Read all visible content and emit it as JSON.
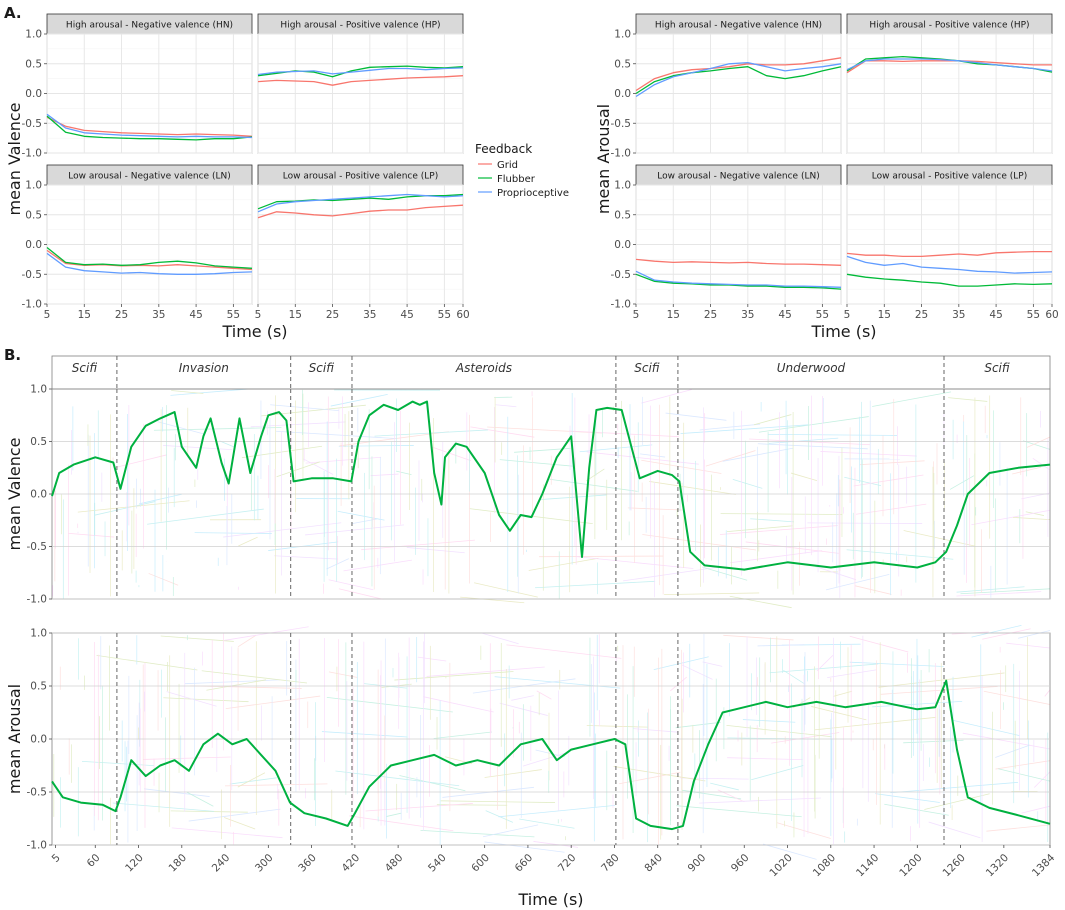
{
  "chart_data": [
    {
      "id": "A-valence",
      "type": "line",
      "panel_label": "A.",
      "ylabel": "mean Valence",
      "xlabel": "Time (s)",
      "xlim": [
        5,
        60
      ],
      "ylim": [
        -1,
        1
      ],
      "x_ticks": [
        5,
        15,
        25,
        35,
        45,
        55,
        60
      ],
      "y_ticks": [
        -1.0,
        -0.5,
        0.0,
        0.5,
        1.0
      ],
      "y_tick_labels": [
        "-1.0",
        "-0.5",
        "0.0",
        "0.5",
        "1.0"
      ],
      "x": [
        5,
        10,
        15,
        20,
        25,
        30,
        35,
        40,
        45,
        50,
        55,
        60
      ],
      "facets": [
        {
          "title": "High arousal - Negative valence (HN)",
          "series": [
            {
              "name": "Grid",
              "values": [
                -0.4,
                -0.55,
                -0.62,
                -0.64,
                -0.66,
                -0.67,
                -0.68,
                -0.69,
                -0.68,
                -0.69,
                -0.7,
                -0.72
              ]
            },
            {
              "name": "Flubber",
              "values": [
                -0.38,
                -0.65,
                -0.72,
                -0.74,
                -0.75,
                -0.76,
                -0.76,
                -0.77,
                -0.78,
                -0.76,
                -0.76,
                -0.73
              ]
            },
            {
              "name": "Proprioceptive",
              "values": [
                -0.35,
                -0.58,
                -0.66,
                -0.68,
                -0.7,
                -0.71,
                -0.72,
                -0.73,
                -0.72,
                -0.73,
                -0.73,
                -0.74
              ]
            }
          ]
        },
        {
          "title": "High arousal - Positive valence (HP)",
          "series": [
            {
              "name": "Grid",
              "values": [
                0.2,
                0.22,
                0.21,
                0.2,
                0.14,
                0.2,
                0.22,
                0.24,
                0.26,
                0.27,
                0.28,
                0.3
              ]
            },
            {
              "name": "Flubber",
              "values": [
                0.3,
                0.34,
                0.38,
                0.36,
                0.28,
                0.38,
                0.44,
                0.45,
                0.46,
                0.44,
                0.43,
                0.45
              ]
            },
            {
              "name": "Proprioceptive",
              "values": [
                0.32,
                0.36,
                0.37,
                0.38,
                0.33,
                0.36,
                0.39,
                0.42,
                0.42,
                0.4,
                0.42,
                0.43
              ]
            }
          ]
        },
        {
          "title": "Low arousal - Negative valence (LN)",
          "series": [
            {
              "name": "Grid",
              "values": [
                -0.1,
                -0.32,
                -0.35,
                -0.34,
                -0.36,
                -0.35,
                -0.36,
                -0.34,
                -0.36,
                -0.38,
                -0.4,
                -0.42
              ]
            },
            {
              "name": "Flubber",
              "values": [
                -0.05,
                -0.3,
                -0.34,
                -0.33,
                -0.35,
                -0.34,
                -0.3,
                -0.28,
                -0.31,
                -0.36,
                -0.38,
                -0.4
              ]
            },
            {
              "name": "Proprioceptive",
              "values": [
                -0.15,
                -0.38,
                -0.44,
                -0.46,
                -0.48,
                -0.47,
                -0.49,
                -0.5,
                -0.5,
                -0.49,
                -0.47,
                -0.46
              ]
            }
          ]
        },
        {
          "title": "Low arousal - Positive valence (LP)",
          "series": [
            {
              "name": "Grid",
              "values": [
                0.45,
                0.55,
                0.53,
                0.5,
                0.48,
                0.52,
                0.56,
                0.58,
                0.58,
                0.62,
                0.64,
                0.66
              ]
            },
            {
              "name": "Flubber",
              "values": [
                0.6,
                0.72,
                0.73,
                0.75,
                0.74,
                0.76,
                0.78,
                0.76,
                0.8,
                0.82,
                0.82,
                0.84
              ]
            },
            {
              "name": "Proprioceptive",
              "values": [
                0.55,
                0.68,
                0.72,
                0.74,
                0.76,
                0.78,
                0.8,
                0.82,
                0.84,
                0.82,
                0.8,
                0.82
              ]
            }
          ]
        }
      ]
    },
    {
      "id": "A-arousal",
      "type": "line",
      "ylabel": "mean Arousal",
      "xlabel": "Time (s)",
      "xlim": [
        5,
        60
      ],
      "ylim": [
        -1,
        1
      ],
      "x_ticks": [
        5,
        15,
        25,
        35,
        45,
        55,
        60
      ],
      "y_ticks": [
        -1.0,
        -0.5,
        0.0,
        0.5,
        1.0
      ],
      "y_tick_labels": [
        "-1.0",
        "-0.5",
        "0.0",
        "0.5",
        "1.0"
      ],
      "x": [
        5,
        10,
        15,
        20,
        25,
        30,
        35,
        40,
        45,
        50,
        55,
        60
      ],
      "facets": [
        {
          "title": "High arousal - Negative valence (HN)",
          "series": [
            {
              "name": "Grid",
              "values": [
                0.05,
                0.25,
                0.35,
                0.4,
                0.42,
                0.45,
                0.5,
                0.48,
                0.48,
                0.5,
                0.55,
                0.6
              ]
            },
            {
              "name": "Flubber",
              "values": [
                0.0,
                0.2,
                0.3,
                0.35,
                0.38,
                0.42,
                0.45,
                0.3,
                0.25,
                0.3,
                0.38,
                0.45
              ]
            },
            {
              "name": "Proprioceptive",
              "values": [
                -0.05,
                0.15,
                0.28,
                0.35,
                0.42,
                0.5,
                0.52,
                0.45,
                0.38,
                0.42,
                0.45,
                0.5
              ]
            }
          ]
        },
        {
          "title": "High arousal - Positive valence (HP)",
          "series": [
            {
              "name": "Grid",
              "values": [
                0.35,
                0.55,
                0.55,
                0.54,
                0.55,
                0.55,
                0.55,
                0.54,
                0.52,
                0.5,
                0.48,
                0.48
              ]
            },
            {
              "name": "Flubber",
              "values": [
                0.38,
                0.58,
                0.6,
                0.62,
                0.6,
                0.58,
                0.55,
                0.5,
                0.48,
                0.45,
                0.42,
                0.36
              ]
            },
            {
              "name": "Proprioceptive",
              "values": [
                0.4,
                0.55,
                0.58,
                0.58,
                0.58,
                0.57,
                0.55,
                0.52,
                0.48,
                0.45,
                0.42,
                0.38
              ]
            }
          ]
        },
        {
          "title": "Low arousal - Negative valence (LN)",
          "series": [
            {
              "name": "Grid",
              "values": [
                -0.25,
                -0.28,
                -0.3,
                -0.29,
                -0.3,
                -0.31,
                -0.3,
                -0.32,
                -0.33,
                -0.33,
                -0.34,
                -0.35
              ]
            },
            {
              "name": "Flubber",
              "values": [
                -0.5,
                -0.62,
                -0.65,
                -0.66,
                -0.68,
                -0.68,
                -0.7,
                -0.7,
                -0.72,
                -0.72,
                -0.73,
                -0.75
              ]
            },
            {
              "name": "Proprioceptive",
              "values": [
                -0.45,
                -0.6,
                -0.63,
                -0.65,
                -0.66,
                -0.67,
                -0.68,
                -0.68,
                -0.7,
                -0.7,
                -0.71,
                -0.72
              ]
            }
          ]
        },
        {
          "title": "Low arousal - Positive valence (LP)",
          "series": [
            {
              "name": "Grid",
              "values": [
                -0.15,
                -0.18,
                -0.18,
                -0.2,
                -0.2,
                -0.18,
                -0.16,
                -0.18,
                -0.14,
                -0.13,
                -0.12,
                -0.12
              ]
            },
            {
              "name": "Flubber",
              "values": [
                -0.5,
                -0.55,
                -0.58,
                -0.6,
                -0.63,
                -0.65,
                -0.7,
                -0.7,
                -0.68,
                -0.66,
                -0.67,
                -0.66
              ]
            },
            {
              "name": "Proprioceptive",
              "values": [
                -0.2,
                -0.3,
                -0.35,
                -0.32,
                -0.38,
                -0.4,
                -0.42,
                -0.45,
                -0.46,
                -0.48,
                -0.47,
                -0.46
              ]
            }
          ]
        }
      ]
    },
    {
      "id": "B-valence",
      "type": "line",
      "panel_label": "B.",
      "ylabel": "mean Valence",
      "xlim": [
        0,
        1384
      ],
      "ylim": [
        -1,
        1
      ],
      "y_ticks": [
        -1.0,
        -0.5,
        0.0,
        0.5,
        1.0
      ],
      "y_tick_labels": [
        "-1.0",
        "-0.5",
        "0.0",
        "0.5",
        "1.0"
      ],
      "scene_boundaries": [
        90,
        331,
        416,
        782,
        868,
        1237
      ],
      "scenes": [
        {
          "name": "Scifi",
          "start": 0,
          "end": 90
        },
        {
          "name": "Invasion",
          "start": 90,
          "end": 331
        },
        {
          "name": "Scifi",
          "start": 331,
          "end": 416
        },
        {
          "name": "Asteroids",
          "start": 416,
          "end": 782
        },
        {
          "name": "Scifi",
          "start": 782,
          "end": 868
        },
        {
          "name": "Underwood",
          "start": 868,
          "end": 1237
        },
        {
          "name": "Scifi",
          "start": 1237,
          "end": 1384
        }
      ],
      "mean_series": {
        "name": "mean",
        "x": [
          0,
          10,
          30,
          60,
          85,
          95,
          110,
          130,
          150,
          170,
          180,
          190,
          200,
          210,
          220,
          235,
          245,
          260,
          275,
          290,
          300,
          315,
          325,
          335,
          360,
          390,
          415,
          425,
          440,
          460,
          480,
          500,
          510,
          520,
          530,
          540,
          545,
          560,
          575,
          600,
          620,
          635,
          650,
          665,
          680,
          700,
          720,
          735,
          745,
          755,
          770,
          790,
          815,
          840,
          860,
          870,
          885,
          905,
          960,
          1020,
          1080,
          1140,
          1200,
          1225,
          1240,
          1255,
          1270,
          1300,
          1340,
          1384
        ],
        "values": [
          -0.02,
          0.2,
          0.28,
          0.35,
          0.3,
          0.05,
          0.45,
          0.65,
          0.72,
          0.78,
          0.45,
          0.35,
          0.25,
          0.55,
          0.72,
          0.3,
          0.1,
          0.72,
          0.2,
          0.55,
          0.75,
          0.78,
          0.7,
          0.12,
          0.15,
          0.15,
          0.12,
          0.5,
          0.75,
          0.85,
          0.8,
          0.88,
          0.85,
          0.88,
          0.2,
          -0.1,
          0.35,
          0.48,
          0.45,
          0.2,
          -0.2,
          -0.35,
          -0.2,
          -0.22,
          0.0,
          0.35,
          0.55,
          -0.6,
          0.25,
          0.8,
          0.82,
          0.8,
          0.15,
          0.22,
          0.18,
          0.12,
          -0.55,
          -0.68,
          -0.72,
          -0.65,
          -0.7,
          -0.65,
          -0.7,
          -0.65,
          -0.55,
          -0.3,
          0.0,
          0.2,
          0.25,
          0.28
        ]
      }
    },
    {
      "id": "B-arousal",
      "type": "line",
      "ylabel": "mean Arousal",
      "xlabel": "Time (s)",
      "xlim": [
        0,
        1384
      ],
      "ylim": [
        -1,
        1
      ],
      "x_ticks": [
        5,
        60,
        120,
        180,
        240,
        300,
        360,
        420,
        480,
        540,
        600,
        660,
        720,
        780,
        840,
        900,
        960,
        1020,
        1080,
        1140,
        1200,
        1260,
        1320,
        1384
      ],
      "y_ticks": [
        -1.0,
        -0.5,
        0.0,
        0.5,
        1.0
      ],
      "y_tick_labels": [
        "-1.0",
        "-0.5",
        "0.0",
        "0.5",
        "1.0"
      ],
      "scene_boundaries": [
        90,
        331,
        416,
        782,
        868,
        1237
      ],
      "mean_series": {
        "name": "mean",
        "x": [
          0,
          15,
          40,
          70,
          88,
          95,
          110,
          130,
          150,
          170,
          190,
          210,
          230,
          250,
          270,
          290,
          310,
          330,
          350,
          380,
          410,
          420,
          440,
          470,
          500,
          530,
          560,
          590,
          620,
          650,
          680,
          700,
          720,
          750,
          780,
          795,
          810,
          830,
          860,
          875,
          890,
          910,
          930,
          960,
          990,
          1020,
          1060,
          1100,
          1150,
          1200,
          1225,
          1240,
          1255,
          1270,
          1300,
          1340,
          1384
        ],
        "values": [
          -0.4,
          -0.55,
          -0.6,
          -0.62,
          -0.68,
          -0.55,
          -0.2,
          -0.35,
          -0.25,
          -0.2,
          -0.3,
          -0.05,
          0.05,
          -0.05,
          0.0,
          -0.15,
          -0.3,
          -0.6,
          -0.7,
          -0.75,
          -0.82,
          -0.7,
          -0.45,
          -0.25,
          -0.2,
          -0.15,
          -0.25,
          -0.2,
          -0.25,
          -0.05,
          0.0,
          -0.2,
          -0.1,
          -0.05,
          0.0,
          -0.05,
          -0.75,
          -0.82,
          -0.85,
          -0.82,
          -0.4,
          -0.05,
          0.25,
          0.3,
          0.35,
          0.3,
          0.35,
          0.3,
          0.35,
          0.28,
          0.3,
          0.55,
          -0.1,
          -0.55,
          -0.65,
          -0.72,
          -0.8
        ]
      }
    }
  ],
  "legend": {
    "title": "Feedback",
    "items": [
      {
        "label": "Grid",
        "color": "#f8766d"
      },
      {
        "label": "Flubber",
        "color": "#00ba38"
      },
      {
        "label": "Proprioceptive",
        "color": "#619cff"
      }
    ]
  },
  "mean_color": "#00b140"
}
